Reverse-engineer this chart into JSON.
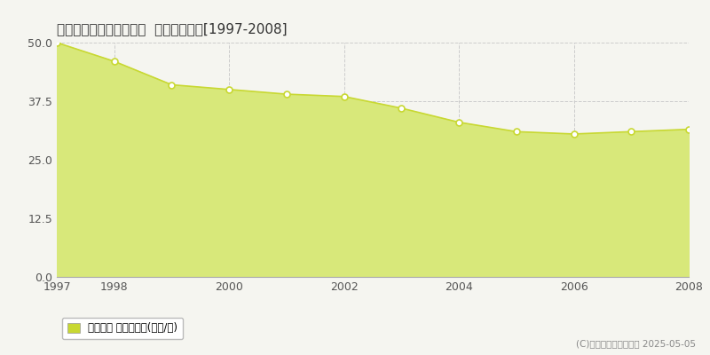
{
  "title": "仙台市青葉区川内亀岡町  基準地価推移[1997-2008]",
  "years": [
    1997,
    1998,
    1999,
    2000,
    2001,
    2002,
    2003,
    2004,
    2005,
    2006,
    2007,
    2008
  ],
  "values": [
    50.0,
    46.0,
    41.0,
    40.0,
    39.0,
    38.5,
    36.0,
    33.0,
    31.0,
    30.5,
    31.0,
    31.5
  ],
  "ylim": [
    0,
    50
  ],
  "yticks": [
    0,
    12.5,
    25,
    37.5,
    50
  ],
  "xticks": [
    1997,
    1998,
    2000,
    2002,
    2004,
    2006,
    2008
  ],
  "line_color": "#c8d832",
  "fill_color": "#d8e87a",
  "fill_alpha": 1.0,
  "marker_color": "white",
  "marker_edge_color": "#c8d832",
  "bg_color": "#f5f5f0",
  "plot_bg_color": "#f5f5f0",
  "grid_color": "#cccccc",
  "legend_label": "基準地価 平均坪単価(万円/坪)",
  "legend_color": "#c8d832",
  "copyright_text": "(C)土地価格ドットコム 2025-05-05"
}
